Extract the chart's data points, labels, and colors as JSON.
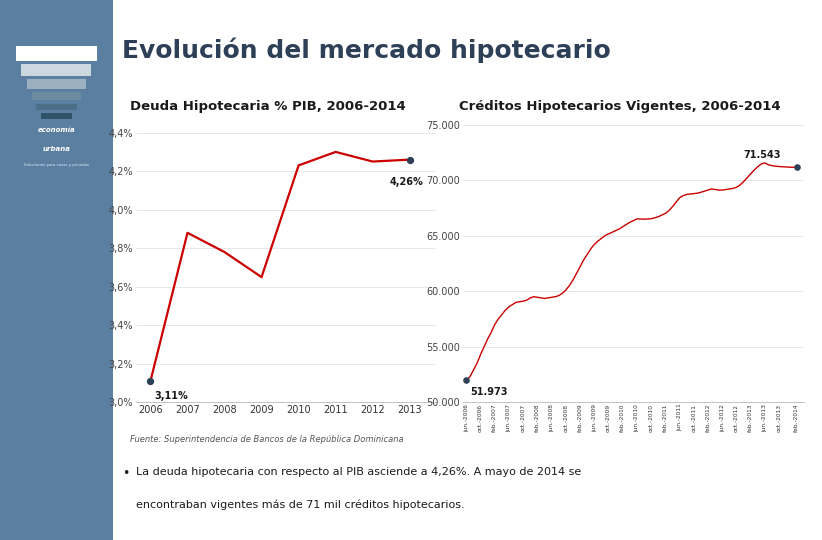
{
  "title": "Evolución del mercado hipotecario",
  "title_fontsize": 18,
  "title_color": "#2E4057",
  "left_chart_title": "Deuda Hipotecaria % PIB, 2006-2014",
  "right_chart_title": "Créditos Hipotecarios Vigentes, 2006-2014",
  "chart_title_fontsize": 9.5,
  "chart_title_color": "#1a1a1a",
  "left_x": [
    2006,
    2007,
    2008,
    2009,
    2010,
    2011,
    2012,
    2013
  ],
  "left_y": [
    3.11,
    3.88,
    3.78,
    3.65,
    4.23,
    4.3,
    4.25,
    4.26
  ],
  "left_ylim": [
    3.0,
    4.5
  ],
  "left_yticks": [
    3.0,
    3.2,
    3.4,
    3.6,
    3.8,
    4.0,
    4.2,
    4.4
  ],
  "left_ytick_labels": [
    "3,0%",
    "3,2%",
    "3,4%",
    "3,6%",
    "3,8%",
    "4,0%",
    "4,2%",
    "4,4%"
  ],
  "left_xticks": [
    2006,
    2007,
    2008,
    2009,
    2010,
    2011,
    2012,
    2013
  ],
  "left_annotation_start": "3,11%",
  "left_annotation_end": "4,26%",
  "right_x_labels": [
    "jun.-2006",
    "oct.-2006",
    "feb.-2007",
    "jun.-2007",
    "oct.-2007",
    "feb.-2008",
    "jun.-2008",
    "oct.-2008",
    "feb.-2009",
    "jun.-2009",
    "oct.-2009",
    "feb.-2010",
    "jun.-2010",
    "oct.-2010",
    "feb.-2011",
    "jun.-2011",
    "oct.-2011",
    "feb.-2012",
    "jun.-2012",
    "oct.-2012",
    "feb.-2013",
    "jun.-2013",
    "oct.-2013",
    "feb.-2014"
  ],
  "right_ylim": [
    50000,
    76000
  ],
  "right_yticks": [
    50000,
    55000,
    60000,
    65000,
    70000,
    75000
  ],
  "right_ytick_labels": [
    "50.000",
    "55.000",
    "60.000",
    "65.000",
    "70.000",
    "75.000"
  ],
  "right_annotation_start": "51.973",
  "right_annotation_end": "71.543",
  "line_color": "#cc0000",
  "dot_color": "#2E4057",
  "footnote": "Fuente: Superintendencia de Bancos de la República Dominicana",
  "bullet_text_line1": "La deuda hipotecaria con respecto al PIB asciende a 4,26%. A mayo de 2014 se",
  "bullet_text_line2": "encontraban vigentes más de 71 mil créditos hipotecarios.",
  "sidebar_color": "#5B7FA0"
}
